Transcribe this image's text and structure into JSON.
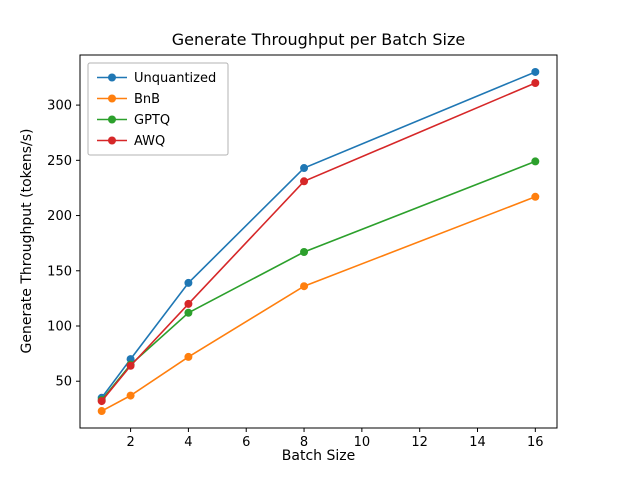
{
  "figure": {
    "title": "Generate Throughput per Batch Size",
    "xlabel": "Batch Size",
    "ylabel": "Generate Throughput (tokens/s)"
  },
  "chart_data": {
    "type": "line",
    "title": "Generate Throughput per Batch Size",
    "xlabel": "Batch Size",
    "ylabel": "Generate Throughput (tokens/s)",
    "x": [
      1,
      2,
      4,
      8,
      16
    ],
    "series": [
      {
        "name": "Unquantized",
        "color": "#1f77b4",
        "values": [
          35,
          70,
          139,
          243,
          330
        ]
      },
      {
        "name": "BnB",
        "color": "#ff7f0e",
        "values": [
          23,
          37,
          72,
          136,
          217
        ]
      },
      {
        "name": "GPTQ",
        "color": "#2ca02c",
        "values": [
          33,
          65,
          112,
          167,
          249
        ]
      },
      {
        "name": "AWQ",
        "color": "#d62728",
        "values": [
          32,
          64,
          120,
          231,
          320
        ]
      }
    ],
    "xticks": [
      2,
      4,
      6,
      8,
      10,
      12,
      14,
      16
    ],
    "yticks": [
      50,
      100,
      150,
      200,
      250,
      300
    ],
    "xlim": [
      0.25,
      16.75
    ],
    "ylim": [
      7.65,
      345.35
    ],
    "grid": false,
    "legend_position": "upper left",
    "marker": "o",
    "line_width": 1.6,
    "marker_radius": 4
  }
}
